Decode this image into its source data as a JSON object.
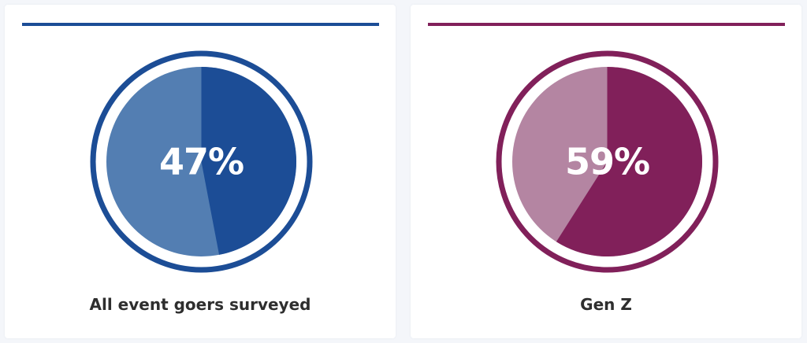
{
  "chart_data": [
    {
      "type": "pie",
      "value": 47,
      "label": "47%",
      "caption": "All event goers surveyed",
      "colors": {
        "primary": "#1c4d96",
        "secondary": "#537eb2"
      }
    },
    {
      "type": "pie",
      "value": 59,
      "label": "59%",
      "caption": "Gen Z",
      "colors": {
        "primary": "#81205a",
        "secondary": "#b485a2"
      }
    }
  ]
}
